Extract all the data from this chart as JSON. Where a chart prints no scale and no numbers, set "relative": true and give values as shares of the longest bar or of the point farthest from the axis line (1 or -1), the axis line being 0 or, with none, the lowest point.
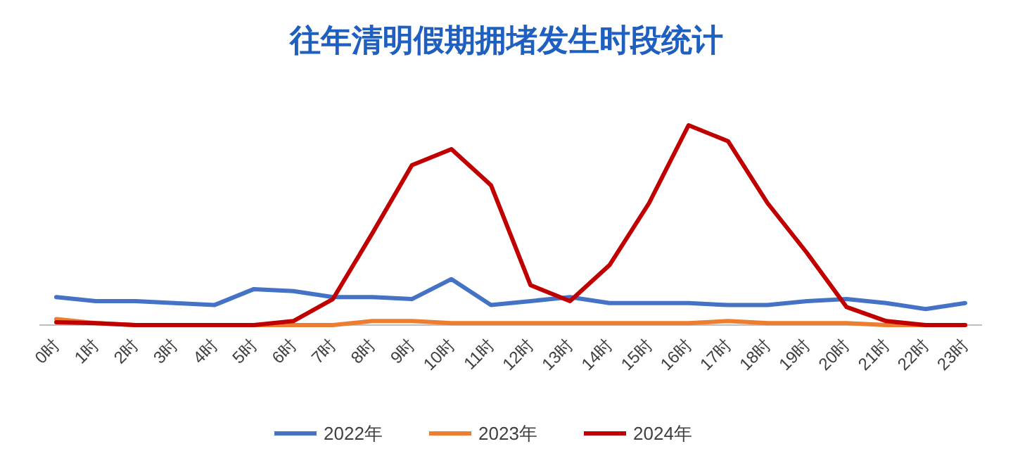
{
  "chart_data": {
    "type": "line",
    "title": "往年清明假期拥堵发生时段统计",
    "relative": true,
    "legend": "bottom",
    "categories": [
      "0时",
      "1时",
      "2时",
      "3时",
      "4时",
      "5时",
      "6时",
      "7时",
      "8时",
      "9时",
      "10时",
      "11时",
      "12时",
      "13时",
      "14时",
      "15时",
      "16时",
      "17时",
      "18时",
      "19时",
      "20时",
      "21时",
      "22时",
      "23时"
    ],
    "series": [
      {
        "name": "2022年",
        "color": "#4472c4",
        "values": [
          0.14,
          0.12,
          0.12,
          0.11,
          0.1,
          0.18,
          0.17,
          0.14,
          0.14,
          0.13,
          0.23,
          0.1,
          0.12,
          0.14,
          0.11,
          0.11,
          0.11,
          0.1,
          0.1,
          0.12,
          0.13,
          0.11,
          0.08,
          0.11
        ]
      },
      {
        "name": "2023年",
        "color": "#ed7d31",
        "values": [
          0.03,
          0.01,
          0,
          0,
          0,
          0,
          0,
          0,
          0.02,
          0.02,
          0.01,
          0.01,
          0.01,
          0.01,
          0.01,
          0.01,
          0.01,
          0.02,
          0.01,
          0.01,
          0.01,
          0,
          0,
          0
        ]
      },
      {
        "name": "2024年",
        "color": "#c00000",
        "values": [
          0.014,
          0.01,
          0,
          0,
          0,
          0,
          0.02,
          0.13,
          0.46,
          0.8,
          0.88,
          0.7,
          0.2,
          0.12,
          0.3,
          0.61,
          1,
          0.92,
          0.61,
          0.36,
          0.09,
          0.02,
          0,
          0
        ]
      }
    ]
  }
}
